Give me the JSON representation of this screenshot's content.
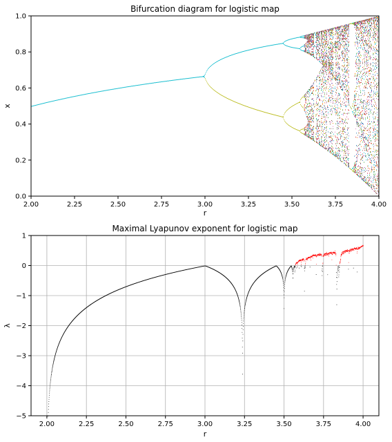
{
  "chart_data": [
    {
      "type": "scatter",
      "title": "Bifurcation diagram for logistic map",
      "xlabel": "r",
      "ylabel": "x",
      "xlim": [
        2.0,
        4.0
      ],
      "ylim": [
        0.0,
        1.0
      ],
      "xticks": [
        "2.00",
        "2.25",
        "2.50",
        "2.75",
        "3.00",
        "3.25",
        "3.50",
        "3.75",
        "4.00"
      ],
      "yticks": [
        "0.0",
        "0.2",
        "0.4",
        "0.6",
        "0.8",
        "1.0"
      ],
      "grid": false,
      "x": [
        2.0,
        2.25,
        2.5,
        2.75,
        3.0,
        3.25,
        3.45,
        3.55,
        3.6,
        3.75,
        3.85,
        4.0
      ],
      "series": [
        {
          "values": [
            0.5,
            0.556,
            0.6,
            0.636,
            0.667,
            0.812,
            0.852,
            0.887,
            0.9,
            0.94,
            0.96,
            1.0
          ]
        },
        {
          "values": [
            0.5,
            0.556,
            0.6,
            0.636,
            0.667,
            0.495,
            0.44,
            0.36,
            0.3,
            0.2,
            0.15,
            0.0
          ]
        }
      ],
      "point_colors": [
        "#17becf",
        "#bcbd22",
        "#1f77b4",
        "#ff7f0e",
        "#2ca02c",
        "#d62728",
        "#9467bd",
        "#8c564b",
        "#e377c2",
        "#7f7f7f"
      ],
      "windows": [
        [
          3.63,
          3.635
        ],
        [
          3.738,
          3.745
        ],
        [
          3.828,
          3.857
        ]
      ]
    },
    {
      "type": "scatter",
      "title": "Maximal Lyapunov exponent for logistic map",
      "xlabel": "r",
      "ylabel": "λ",
      "xlim": [
        1.9,
        4.1
      ],
      "ylim": [
        -5,
        1
      ],
      "xticks": [
        "2.00",
        "2.25",
        "2.50",
        "2.75",
        "3.00",
        "3.25",
        "3.50",
        "3.75",
        "4.00"
      ],
      "yticks": [
        "−5",
        "−4",
        "−3",
        "−2",
        "−1",
        "0",
        "1"
      ],
      "grid": true,
      "x": [
        2.0,
        2.05,
        2.1,
        2.25,
        2.5,
        2.75,
        3.0,
        3.1,
        3.2,
        3.236,
        3.3,
        3.45,
        3.5,
        3.57,
        3.7,
        3.83,
        4.0
      ],
      "values": [
        -5.0,
        -2.7,
        -2.2,
        -1.4,
        -0.69,
        -0.29,
        0.0,
        -0.22,
        -0.8,
        -4.5,
        -0.6,
        -0.02,
        -1.9,
        0.0,
        0.35,
        -1.2,
        0.69
      ],
      "colors": {
        "negative": "#000000",
        "positive": "#ff0000"
      }
    }
  ]
}
